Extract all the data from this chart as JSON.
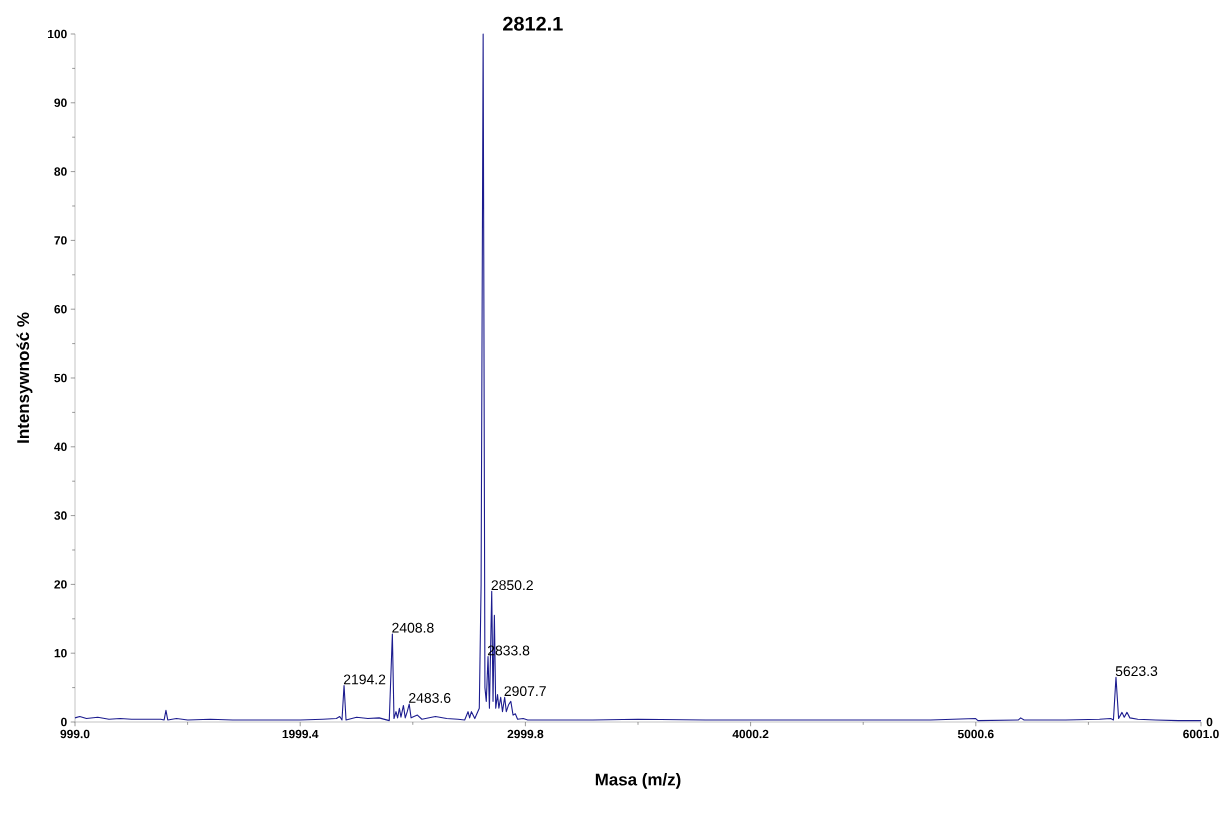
{
  "chart_data": {
    "type": "line",
    "xlabel": "Masa (m/z)",
    "ylabel": "Intensywność %",
    "xlim": [
      999.0,
      6001.0
    ],
    "xticks": [
      {
        "value": 999.0,
        "label": "999.0"
      },
      {
        "value": 1999.4,
        "label": "1999.4"
      },
      {
        "value": 2999.8,
        "label": "2999.8"
      },
      {
        "value": 4000.2,
        "label": "4000.2"
      },
      {
        "value": 5000.6,
        "label": "5000.6"
      },
      {
        "value": 6001.0,
        "label": "6001.0"
      }
    ],
    "ylim": [
      0,
      100
    ],
    "yticks": [
      0,
      10,
      20,
      30,
      40,
      50,
      60,
      70,
      80,
      90,
      100
    ],
    "marker": "none",
    "line_style": "solid",
    "series": [
      {
        "color": "#1c1c8f",
        "x": [
          999,
          1020,
          1050,
          1100,
          1150,
          1200,
          1250,
          1300,
          1380,
          1395,
          1403,
          1411,
          1450,
          1500,
          1600,
          1700,
          1800,
          1900,
          2000,
          2100,
          2160,
          2175,
          2185,
          2194.2,
          2203,
          2250,
          2300,
          2350,
          2395,
          2408.8,
          2416,
          2425,
          2432,
          2440,
          2447,
          2458,
          2466,
          2475,
          2483.6,
          2492,
          2520,
          2540,
          2600,
          2650,
          2700,
          2730,
          2745,
          2752,
          2760,
          2775,
          2795,
          2803,
          2812.1,
          2820,
          2826,
          2833.8,
          2840,
          2850.2,
          2856,
          2862,
          2868,
          2876,
          2882,
          2890,
          2898,
          2907.7,
          2915,
          2925,
          2935,
          2945,
          2955,
          2965,
          2990,
          3010,
          3100,
          3300,
          3500,
          3800,
          4000,
          4300,
          4500,
          4800,
          5000,
          5010,
          5190,
          5200,
          5215,
          5300,
          5400,
          5550,
          5600,
          5612,
          5623.3,
          5635,
          5650,
          5660,
          5672,
          5685,
          5720,
          5800,
          5900,
          6001
        ],
        "values": [
          0.6,
          0.8,
          0.5,
          0.7,
          0.4,
          0.5,
          0.4,
          0.4,
          0.4,
          0.3,
          1.7,
          0.3,
          0.5,
          0.3,
          0.4,
          0.3,
          0.3,
          0.3,
          0.3,
          0.4,
          0.5,
          0.8,
          0.3,
          5.3,
          0.3,
          0.7,
          0.5,
          0.6,
          0.2,
          12.8,
          0.5,
          1.5,
          0.6,
          2.0,
          0.7,
          2.4,
          0.6,
          1.5,
          2.6,
          0.6,
          1.0,
          0.4,
          0.8,
          0.5,
          0.4,
          0.3,
          1.5,
          0.6,
          1.5,
          0.5,
          2,
          20,
          100,
          5,
          3,
          9.5,
          2,
          19,
          3,
          15.5,
          2,
          4,
          2,
          3.6,
          1.5,
          3.6,
          1.5,
          2.5,
          3,
          1,
          1.2,
          0.4,
          0.5,
          0.3,
          0.3,
          0.3,
          0.4,
          0.3,
          0.3,
          0.3,
          0.3,
          0.3,
          0.5,
          0.2,
          0.3,
          0.6,
          0.3,
          0.3,
          0.3,
          0.4,
          0.5,
          0.3,
          6.5,
          0.5,
          1.4,
          0.7,
          1.4,
          0.6,
          0.4,
          0.3,
          0.2,
          0.2
        ]
      }
    ],
    "annotations": [
      {
        "text": "2812.1",
        "x": 2812.1,
        "y": 100
      },
      {
        "text": "2194.2",
        "x": 2194.2,
        "y": 5.3
      },
      {
        "text": "2408.8",
        "x": 2408.8,
        "y": 12.8
      },
      {
        "text": "2483.6",
        "x": 2483.6,
        "y": 2.6
      },
      {
        "text": "2833.8",
        "x": 2833.8,
        "y": 9.5
      },
      {
        "text": "2850.2",
        "x": 2850.2,
        "y": 19
      },
      {
        "text": "2907.7",
        "x": 2907.7,
        "y": 3.6
      },
      {
        "text": "5623.3",
        "x": 5623.3,
        "y": 6.5
      },
      "0"
    ]
  }
}
